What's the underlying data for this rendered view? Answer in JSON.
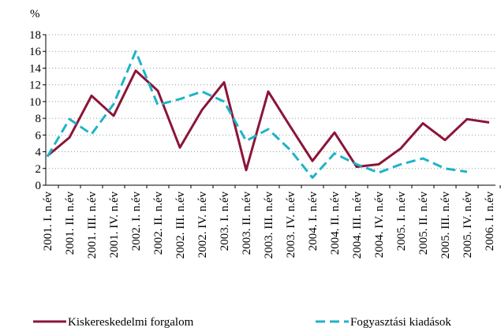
{
  "chart_data": {
    "type": "line",
    "y_label": "%",
    "categories": [
      "2001. I. n.év",
      "2001. II. n.év",
      "2001. III. n.év",
      "2001. IV. n.év",
      "2002. I. n.év",
      "2002. II. n.év",
      "2002. III. n.év",
      "2002. IV. n.év",
      "2003. I. n.év",
      "2003. II. n.év",
      "2003. III. n.év",
      "2003. IV. n.év",
      "2004. I. n.év",
      "2004. II. n.év",
      "2004. III. n.év",
      "2004. IV. n.év",
      "2005. I. n.év",
      "2005. II. n.év",
      "2005. III. n.év",
      "2005. IV. n.év",
      "2006. I. n.év"
    ],
    "series": [
      {
        "name": "Kiskereskedelmi forgalom",
        "color": "#8b1538",
        "dashed": false,
        "values": [
          3.5,
          5.7,
          10.7,
          8.3,
          13.7,
          11.3,
          4.5,
          9.0,
          12.3,
          1.8,
          11.2,
          7.0,
          2.9,
          6.3,
          2.2,
          2.5,
          4.4,
          7.4,
          5.4,
          7.9,
          7.5
        ]
      },
      {
        "name": "Fogyasztási kiadások",
        "color": "#1fb3c9",
        "dashed": true,
        "values": [
          3.4,
          7.9,
          6.1,
          9.7,
          16.0,
          9.6,
          10.3,
          11.2,
          10.0,
          5.3,
          6.7,
          4.2,
          0.9,
          3.8,
          2.5,
          1.5,
          2.5,
          3.2,
          2.0,
          1.6,
          null
        ]
      }
    ],
    "ylim": [
      0,
      18
    ],
    "yticks": [
      0,
      2,
      4,
      6,
      8,
      10,
      12,
      14,
      16,
      18
    ],
    "grid": true
  }
}
